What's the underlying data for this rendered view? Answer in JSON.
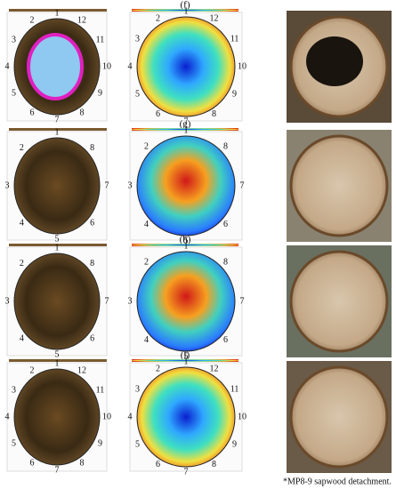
{
  "panels": [
    {
      "label": "(f)",
      "sensors": [
        "1",
        "2",
        "3",
        "4",
        "5",
        "6",
        "7",
        "8",
        "9",
        "10",
        "11",
        "12"
      ]
    },
    {
      "label": "(g)",
      "sensors": [
        "1",
        "2",
        "3",
        "4",
        "5",
        "6",
        "7",
        "8"
      ]
    },
    {
      "label": "(h)",
      "sensors": [
        "1",
        "2",
        "3",
        "4",
        "5",
        "6",
        "7",
        "8"
      ]
    },
    {
      "label": "(i)",
      "sensors": [
        "1",
        "2",
        "3",
        "4",
        "5",
        "6",
        "7",
        "8",
        "9",
        "10",
        "11",
        "12"
      ]
    }
  ],
  "footnote": "*MP8-9 sapwood detachment."
}
